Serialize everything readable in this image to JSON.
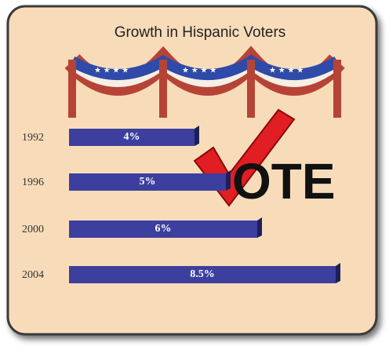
{
  "chart_data": {
    "type": "bar",
    "title": "Growth in Hispanic Voters",
    "annotation": "OTE",
    "categories": [
      "1992",
      "1996",
      "2000",
      "2004"
    ],
    "values": [
      4,
      5,
      6,
      8.5
    ],
    "value_labels": [
      "4%",
      "5%",
      "6%",
      "8.5%"
    ],
    "color": "#3c3f9e"
  }
}
